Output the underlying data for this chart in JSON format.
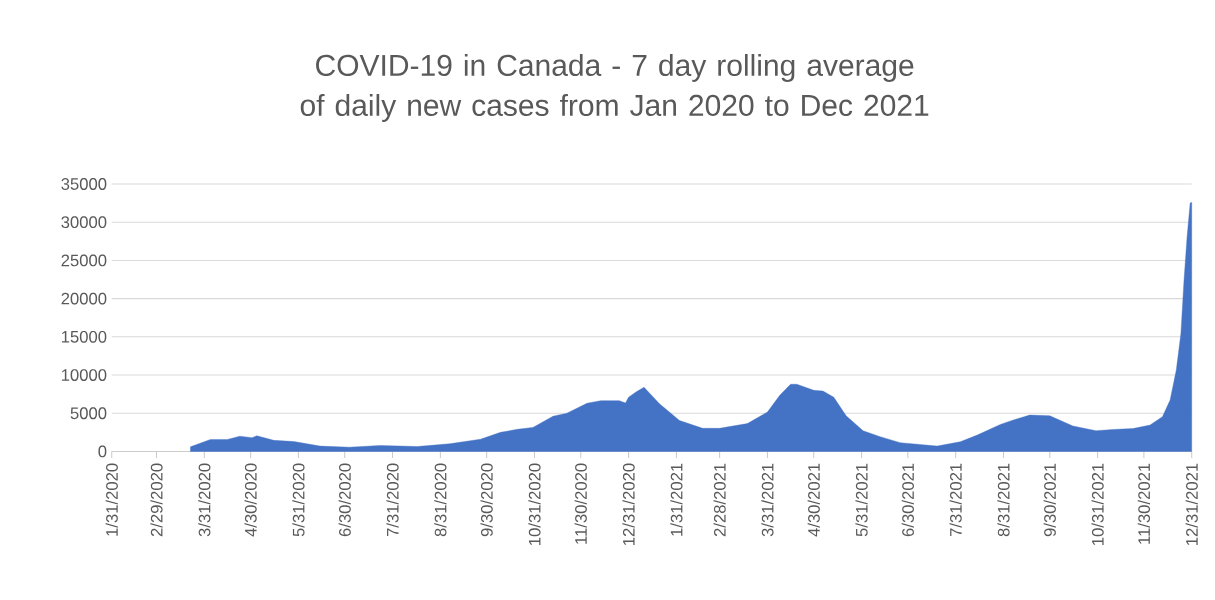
{
  "chart_data": {
    "type": "area",
    "title": "COVID-19 in Canada - 7 day rolling average of daily new cases from Jan 2020 to Dec 2021",
    "x": [
      "2020-03-22",
      "2020-04-04",
      "2020-04-15",
      "2020-04-23",
      "2020-05-01",
      "2020-05-04",
      "2020-05-15",
      "2020-05-28",
      "2020-06-14",
      "2020-07-03",
      "2020-07-23",
      "2020-08-16",
      "2020-09-06",
      "2020-09-26",
      "2020-10-09",
      "2020-10-20",
      "2020-10-30",
      "2020-11-12",
      "2020-11-21",
      "2020-12-04",
      "2020-12-13",
      "2020-12-25",
      "2020-12-29",
      "2020-12-31",
      "2021-01-05",
      "2021-01-10",
      "2021-01-20",
      "2021-02-02",
      "2021-02-17",
      "2021-02-28",
      "2021-03-18",
      "2021-03-31",
      "2021-04-08",
      "2021-04-15",
      "2021-04-19",
      "2021-04-30",
      "2021-05-06",
      "2021-05-13",
      "2021-05-21",
      "2021-06-01",
      "2021-06-12",
      "2021-06-25",
      "2021-07-19",
      "2021-08-03",
      "2021-08-14",
      "2021-08-29",
      "2021-09-06",
      "2021-09-17",
      "2021-09-30",
      "2021-10-15",
      "2021-10-30",
      "2021-11-10",
      "2021-11-23",
      "2021-12-04",
      "2021-12-12",
      "2021-12-17",
      "2021-12-21",
      "2021-12-24",
      "2021-12-26",
      "2021-12-28",
      "2021-12-30",
      "2021-12-31"
    ],
    "values": [
      600,
      1570,
      1570,
      2000,
      1800,
      2050,
      1450,
      1300,
      700,
      560,
      780,
      650,
      1000,
      1600,
      2500,
      2900,
      3150,
      4600,
      5000,
      6300,
      6650,
      6650,
      6350,
      7100,
      7800,
      8400,
      6250,
      4050,
      3030,
      3030,
      3650,
      5150,
      7350,
      8800,
      8800,
      8000,
      7900,
      7100,
      4660,
      2700,
      1940,
      1150,
      700,
      1270,
      2140,
      3540,
      4100,
      4760,
      4670,
      3320,
      2710,
      2880,
      3000,
      3450,
      4540,
      6720,
      10650,
      15450,
      22400,
      28100,
      32500,
      32600
    ],
    "color": "#4472c4",
    "xlim": [
      "2020-01-31",
      "2021-12-31"
    ],
    "xticks": [
      {
        "value": "2020-01-31",
        "label": "1/31/2020"
      },
      {
        "value": "2020-02-29",
        "label": "2/29/2020"
      },
      {
        "value": "2020-03-31",
        "label": "3/31/2020"
      },
      {
        "value": "2020-04-30",
        "label": "4/30/2020"
      },
      {
        "value": "2020-05-31",
        "label": "5/31/2020"
      },
      {
        "value": "2020-06-30",
        "label": "6/30/2020"
      },
      {
        "value": "2020-07-31",
        "label": "7/31/2020"
      },
      {
        "value": "2020-08-31",
        "label": "8/31/2020"
      },
      {
        "value": "2020-09-30",
        "label": "9/30/2020"
      },
      {
        "value": "2020-10-31",
        "label": "10/31/2020"
      },
      {
        "value": "2020-11-30",
        "label": "11/30/2020"
      },
      {
        "value": "2020-12-31",
        "label": "12/31/2020"
      },
      {
        "value": "2021-01-31",
        "label": "1/31/2021"
      },
      {
        "value": "2021-02-28",
        "label": "2/28/2021"
      },
      {
        "value": "2021-03-31",
        "label": "3/31/2021"
      },
      {
        "value": "2021-04-30",
        "label": "4/30/2021"
      },
      {
        "value": "2021-05-31",
        "label": "5/31/2021"
      },
      {
        "value": "2021-06-30",
        "label": "6/30/2021"
      },
      {
        "value": "2021-07-31",
        "label": "7/31/2021"
      },
      {
        "value": "2021-08-31",
        "label": "8/31/2021"
      },
      {
        "value": "2021-09-30",
        "label": "9/30/2021"
      },
      {
        "value": "2021-10-31",
        "label": "10/31/2021"
      },
      {
        "value": "2021-11-30",
        "label": "11/30/2021"
      },
      {
        "value": "2021-12-31",
        "label": "12/31/2021"
      }
    ],
    "ylim": [
      0,
      35000
    ],
    "yticks": [
      0,
      5000,
      10000,
      15000,
      20000,
      25000,
      30000,
      35000
    ],
    "grid": "y"
  }
}
